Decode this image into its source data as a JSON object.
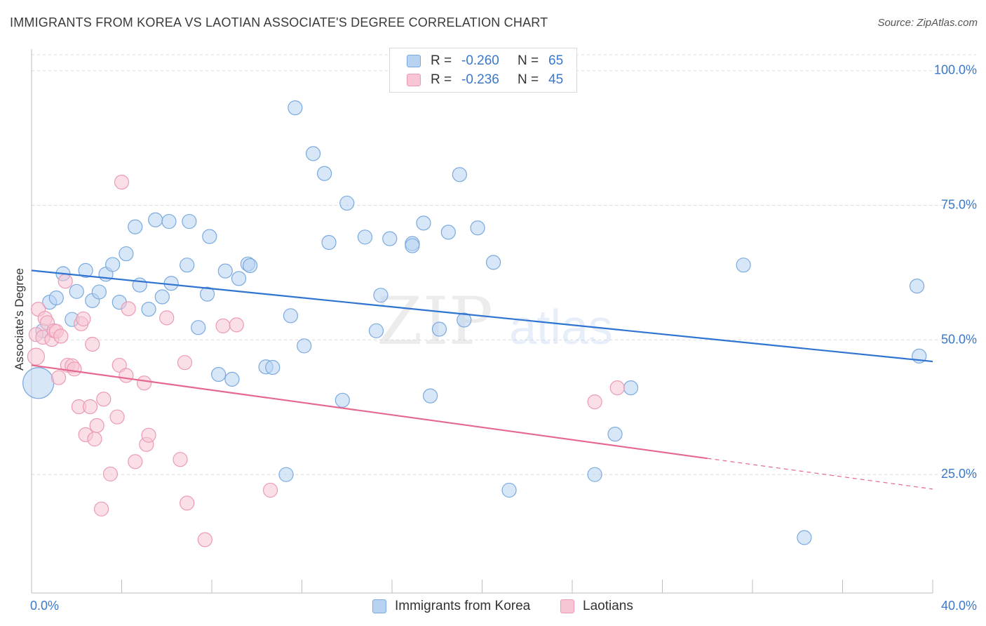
{
  "title": "IMMIGRANTS FROM KOREA VS LAOTIAN ASSOCIATE'S DEGREE CORRELATION CHART",
  "source": "Source: ZipAtlas.com",
  "watermark": {
    "zip": "ZIP",
    "atlas": "atlas"
  },
  "legend": {
    "r_label": "R =",
    "n_label": "N =",
    "korea": {
      "r": "-0.260",
      "n": "65"
    },
    "laotian": {
      "r": "-0.236",
      "n": "45"
    }
  },
  "colors": {
    "korea_fill": "#b8d3f2",
    "korea_stroke": "#7aa9df",
    "korea_line": "#2f74d0",
    "laotian_fill": "#f8c5d4",
    "laotian_stroke": "#ec9ab3",
    "laotian_line": "#e5688f",
    "tick_label": "#3a78c9"
  },
  "chart_data": {
    "type": "scatter",
    "title": "IMMIGRANTS FROM KOREA VS LAOTIAN ASSOCIATE'S DEGREE CORRELATION CHART",
    "ylabel": "Associate's Degree",
    "xlim": [
      0,
      40
    ],
    "ylim": [
      3,
      104
    ],
    "x_tick_labels": [
      "0.0%",
      "40.0%"
    ],
    "y_ticks": [
      25,
      50,
      75,
      100
    ],
    "y_tick_labels": [
      "25.0%",
      "50.0%",
      "75.0%",
      "100.0%"
    ],
    "grid": true,
    "legend_position": "top-center",
    "series": [
      {
        "name": "Immigrants from Korea",
        "trend": {
          "x0": 0,
          "y0": 62.9,
          "x1": 40,
          "y1": 46.0
        },
        "points": [
          [
            0.3,
            42,
            22
          ],
          [
            0.5,
            51.7,
            10
          ],
          [
            0.8,
            57,
            10
          ],
          [
            1.1,
            57.8,
            10
          ],
          [
            1.4,
            62.3,
            10
          ],
          [
            1.8,
            53.8,
            10
          ],
          [
            2.0,
            59,
            10
          ],
          [
            2.4,
            62.9,
            10
          ],
          [
            2.7,
            57.3,
            10
          ],
          [
            3.0,
            58.9,
            10
          ],
          [
            3.3,
            62.2,
            10
          ],
          [
            3.6,
            64,
            10
          ],
          [
            3.9,
            57,
            10
          ],
          [
            4.2,
            66,
            10
          ],
          [
            4.6,
            71,
            10
          ],
          [
            4.8,
            60.2,
            10
          ],
          [
            5.2,
            55.7,
            10
          ],
          [
            5.5,
            72.3,
            10
          ],
          [
            5.8,
            58,
            10
          ],
          [
            6.2,
            60.5,
            10
          ],
          [
            6.1,
            72,
            10
          ],
          [
            6.9,
            63.9,
            10
          ],
          [
            7.0,
            72,
            10
          ],
          [
            7.4,
            52.3,
            10
          ],
          [
            7.8,
            58.5,
            10
          ],
          [
            7.9,
            69.2,
            10
          ],
          [
            8.3,
            43.6,
            10
          ],
          [
            8.6,
            62.8,
            10
          ],
          [
            8.9,
            42.7,
            10
          ],
          [
            9.2,
            61.4,
            10
          ],
          [
            9.6,
            64.1,
            10
          ],
          [
            9.7,
            63.8,
            10
          ],
          [
            10.4,
            45,
            10
          ],
          [
            10.7,
            44.9,
            10
          ],
          [
            11.3,
            25,
            10
          ],
          [
            11.5,
            54.5,
            10
          ],
          [
            11.7,
            93.1,
            10
          ],
          [
            12.1,
            48.9,
            10
          ],
          [
            12.5,
            84.6,
            10
          ],
          [
            13.0,
            80.9,
            10
          ],
          [
            13.2,
            68.1,
            10
          ],
          [
            13.8,
            38.8,
            10
          ],
          [
            14.0,
            75.4,
            10
          ],
          [
            14.8,
            69.1,
            10
          ],
          [
            15.3,
            51.7,
            10
          ],
          [
            15.5,
            58.3,
            10
          ],
          [
            15.9,
            68.8,
            10
          ],
          [
            16.9,
            67.9,
            10
          ],
          [
            16.9,
            67.5,
            10
          ],
          [
            17.4,
            71.7,
            10
          ],
          [
            17.7,
            39.6,
            10
          ],
          [
            18.1,
            52,
            10
          ],
          [
            18.5,
            70,
            10
          ],
          [
            19.2,
            53.7,
            10
          ],
          [
            19.0,
            80.7,
            10
          ],
          [
            19.8,
            70.8,
            10
          ],
          [
            20.5,
            64.4,
            10
          ],
          [
            21.2,
            22.1,
            10
          ],
          [
            25.0,
            25,
            10
          ],
          [
            25.9,
            32.5,
            10
          ],
          [
            26.6,
            41.1,
            10
          ],
          [
            31.6,
            63.9,
            10
          ],
          [
            34.3,
            13.3,
            10
          ],
          [
            39.3,
            60,
            10
          ],
          [
            39.4,
            47,
            10
          ]
        ]
      },
      {
        "name": "Laotians",
        "trend": {
          "x0": 0,
          "y0": 45.3,
          "x1": 30.0,
          "y1": 28.0,
          "dash_x1": 40,
          "dash_y1": 22.3
        },
        "points": [
          [
            0.2,
            46.9,
            12
          ],
          [
            0.2,
            51,
            10
          ],
          [
            0.3,
            55.7,
            10
          ],
          [
            0.5,
            50.5,
            10
          ],
          [
            0.6,
            54,
            10
          ],
          [
            0.7,
            53.2,
            10
          ],
          [
            0.9,
            50.1,
            10
          ],
          [
            1.0,
            51.7,
            10
          ],
          [
            1.1,
            51.6,
            10
          ],
          [
            1.2,
            43,
            10
          ],
          [
            1.3,
            50.7,
            10
          ],
          [
            1.5,
            60.9,
            10
          ],
          [
            1.6,
            45.3,
            10
          ],
          [
            1.8,
            45.2,
            10
          ],
          [
            1.9,
            44.6,
            10
          ],
          [
            2.1,
            37.6,
            10
          ],
          [
            2.2,
            53,
            10
          ],
          [
            2.3,
            53.9,
            10
          ],
          [
            2.4,
            32.4,
            10
          ],
          [
            2.6,
            37.6,
            10
          ],
          [
            2.7,
            49.2,
            10
          ],
          [
            2.8,
            31.6,
            10
          ],
          [
            2.9,
            34.1,
            10
          ],
          [
            3.1,
            18.6,
            10
          ],
          [
            3.2,
            39,
            10
          ],
          [
            3.5,
            25.1,
            10
          ],
          [
            3.8,
            35.7,
            10
          ],
          [
            3.9,
            45.3,
            10
          ],
          [
            4.0,
            79.3,
            10
          ],
          [
            4.2,
            43.4,
            10
          ],
          [
            4.3,
            55.8,
            10
          ],
          [
            4.6,
            27.4,
            10
          ],
          [
            5.0,
            42,
            10
          ],
          [
            5.1,
            30.6,
            10
          ],
          [
            5.2,
            32.3,
            10
          ],
          [
            6.0,
            54.1,
            10
          ],
          [
            6.6,
            27.8,
            10
          ],
          [
            6.8,
            45.8,
            10
          ],
          [
            6.9,
            19.7,
            10
          ],
          [
            7.7,
            12.9,
            10
          ],
          [
            8.5,
            52.6,
            10
          ],
          [
            9.1,
            52.8,
            10
          ],
          [
            10.6,
            22.1,
            10
          ],
          [
            25.0,
            38.5,
            10
          ],
          [
            26.0,
            41.1,
            10
          ]
        ]
      }
    ]
  }
}
